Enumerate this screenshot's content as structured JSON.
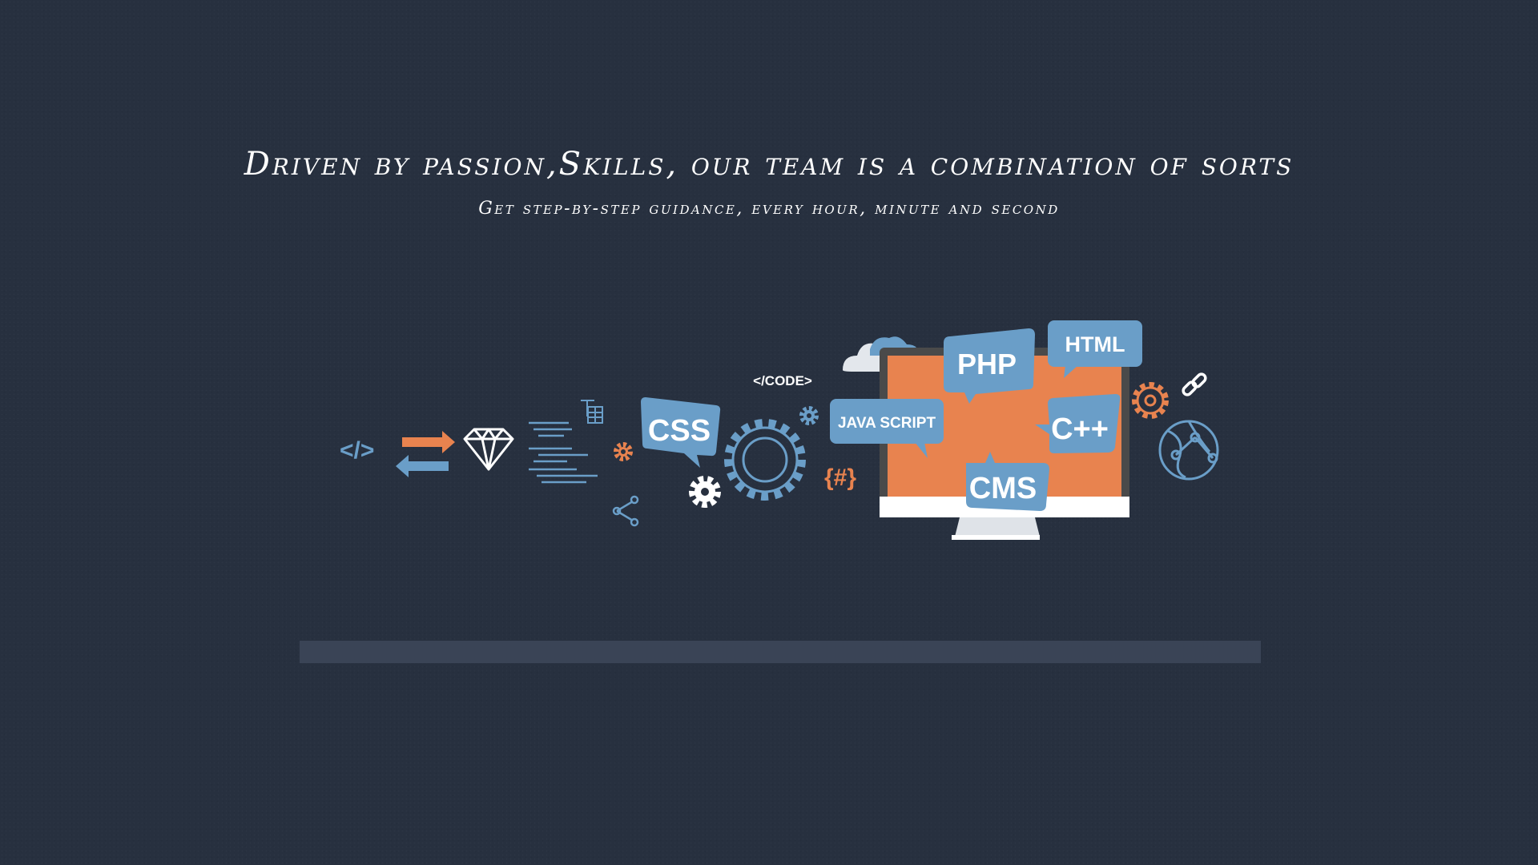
{
  "hero": {
    "headline": "Driven by passion,Skills, our team is a combination of sorts",
    "subheadline": "Get step-by-step guidance, every hour, minute and second"
  },
  "illustration": {
    "code_tag": "</>",
    "code_label": "</CODE>",
    "hash_label": "{#}",
    "bubbles": {
      "css": "CSS",
      "php": "PHP",
      "html": "HTML",
      "javascript": "JAVA SCRIPT",
      "cpp": "C++",
      "cms": "CMS"
    }
  },
  "colors": {
    "background": "#27303f",
    "accent_blue": "#6a9ec8",
    "accent_orange": "#e8834f",
    "white": "#ffffff"
  },
  "icons": [
    "code-tag-icon",
    "swap-arrows-icon",
    "diamond-icon",
    "text-align-icon",
    "text-table-icon",
    "cog-icon",
    "share-icon",
    "gear-icon",
    "cloud-icon",
    "monitor-icon",
    "link-icon",
    "globe-icon"
  ],
  "progress": {
    "value": 0
  }
}
